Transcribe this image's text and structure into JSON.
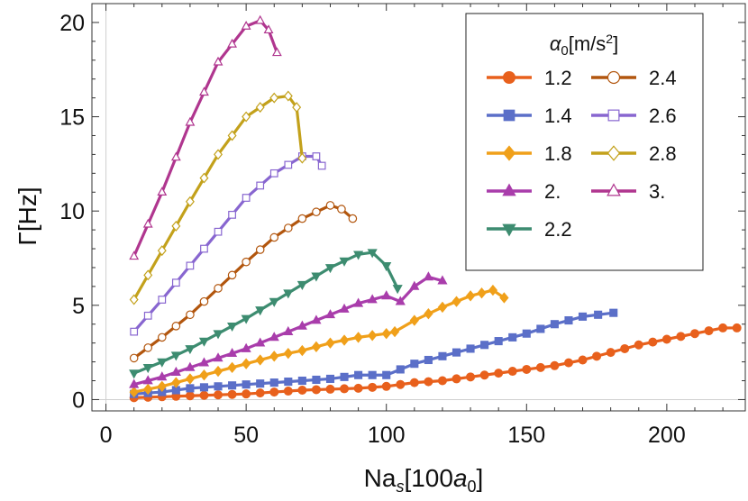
{
  "chart_data": {
    "type": "line",
    "title": "",
    "xlabel_main": "Na",
    "xlabel_sub": "s",
    "xlabel_bracket_open": "[100",
    "xlabel_unit": "a",
    "xlabel_unit_sub": "0",
    "xlabel_bracket_close": "]",
    "ylabel": "Γ[Hz]",
    "xlim": [
      -5,
      228
    ],
    "ylim": [
      -0.6,
      21
    ],
    "xticks": [
      0,
      50,
      100,
      150,
      200
    ],
    "yticks": [
      0,
      5,
      10,
      15,
      20
    ],
    "legend": {
      "title_symbol": "α",
      "title_sub": "0",
      "title_unit": "[m/s",
      "title_sup": "2",
      "title_close": "]",
      "position": "top-right"
    },
    "series": [
      {
        "name": "1.2",
        "color": "#E8601C",
        "marker": "circle",
        "filled": true,
        "x": [
          10,
          20,
          30,
          40,
          50,
          60,
          70,
          80,
          90,
          100,
          110,
          120,
          130,
          140,
          150,
          160,
          170,
          180,
          190,
          200,
          210,
          220,
          225
        ],
        "y": [
          0.1,
          0.15,
          0.2,
          0.25,
          0.3,
          0.4,
          0.5,
          0.55,
          0.6,
          0.7,
          0.9,
          1.0,
          1.2,
          1.4,
          1.6,
          1.8,
          2.1,
          2.5,
          2.9,
          3.2,
          3.5,
          3.8,
          3.8
        ]
      },
      {
        "name": "1.4",
        "color": "#5B6FC8",
        "marker": "square",
        "filled": true,
        "x": [
          10,
          20,
          30,
          40,
          50,
          60,
          70,
          80,
          90,
          100,
          105,
          110,
          120,
          130,
          140,
          150,
          160,
          170,
          181
        ],
        "y": [
          0.3,
          0.4,
          0.6,
          0.7,
          0.8,
          0.9,
          1.0,
          1.1,
          1.3,
          1.3,
          1.6,
          1.9,
          2.3,
          2.7,
          3.1,
          3.5,
          4.0,
          4.4,
          4.6
        ]
      },
      {
        "name": "1.8",
        "color": "#F0A01A",
        "marker": "diamond",
        "filled": true,
        "x": [
          10,
          20,
          30,
          40,
          50,
          60,
          70,
          80,
          90,
          100,
          103,
          110,
          120,
          130,
          138,
          142
        ],
        "y": [
          0.4,
          0.7,
          1.1,
          1.5,
          1.9,
          2.3,
          2.6,
          3.0,
          3.3,
          3.5,
          3.6,
          4.2,
          4.9,
          5.5,
          5.8,
          5.4
        ]
      },
      {
        "name": "2.",
        "color": "#A93DAB",
        "marker": "triangle-up",
        "filled": true,
        "x": [
          10,
          20,
          30,
          40,
          50,
          60,
          70,
          80,
          90,
          100,
          105,
          110,
          115,
          120
        ],
        "y": [
          0.8,
          1.2,
          1.7,
          2.2,
          2.7,
          3.3,
          3.9,
          4.5,
          5.1,
          5.5,
          5.2,
          6.0,
          6.5,
          6.3
        ]
      },
      {
        "name": "2.2",
        "color": "#3D8C70",
        "marker": "triangle-down",
        "filled": true,
        "x": [
          10,
          20,
          30,
          40,
          50,
          60,
          70,
          80,
          90,
          95,
          100,
          104
        ],
        "y": [
          1.4,
          2.0,
          2.7,
          3.5,
          4.3,
          5.2,
          6.1,
          7.0,
          7.7,
          7.8,
          7.1,
          5.9
        ]
      },
      {
        "name": "2.4",
        "color": "#B2560E",
        "marker": "circle",
        "filled": false,
        "x": [
          10,
          20,
          30,
          40,
          50,
          60,
          70,
          80,
          84,
          88
        ],
        "y": [
          2.2,
          3.3,
          4.5,
          5.9,
          7.3,
          8.6,
          9.6,
          10.3,
          10.1,
          9.6
        ]
      },
      {
        "name": "2.6",
        "color": "#8866D0",
        "marker": "square",
        "filled": false,
        "x": [
          10,
          20,
          30,
          40,
          50,
          60,
          70,
          75,
          77
        ],
        "y": [
          3.6,
          5.3,
          7.1,
          8.9,
          10.7,
          12.0,
          12.9,
          12.9,
          12.4
        ]
      },
      {
        "name": "2.8",
        "color": "#C3A11B",
        "marker": "diamond",
        "filled": false,
        "x": [
          10,
          20,
          30,
          40,
          50,
          60,
          65,
          68,
          70
        ],
        "y": [
          5.3,
          7.9,
          10.5,
          13.0,
          15.0,
          16.0,
          16.1,
          15.5,
          12.8
        ]
      },
      {
        "name": "3.",
        "color": "#B0368F",
        "marker": "triangle-up",
        "filled": false,
        "x": [
          10,
          20,
          30,
          40,
          50,
          55,
          58,
          61
        ],
        "y": [
          7.6,
          11.0,
          14.7,
          17.9,
          19.8,
          20.1,
          19.6,
          18.4
        ]
      }
    ]
  }
}
